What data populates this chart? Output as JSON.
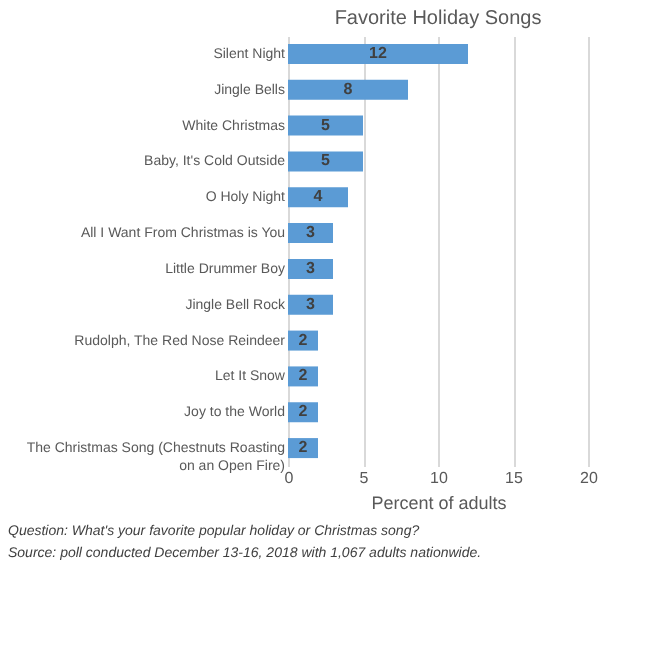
{
  "chart_data": {
    "type": "bar",
    "orientation": "horizontal",
    "title": "Favorite Holiday Songs",
    "xlabel": "Percent of adults",
    "categories": [
      "Silent Night",
      "Jingle Bells",
      "White Christmas",
      "Baby, It's Cold Outside",
      "O Holy Night",
      "All I Want From Christmas is You",
      "Little Drummer Boy",
      "Jingle Bell Rock",
      "Rudolph, The Red Nose Reindeer",
      "Let It Snow",
      "Joy to the World",
      "The Christmas Song (Chestnuts Roasting on an Open Fire)"
    ],
    "values": [
      12,
      8,
      5,
      5,
      4,
      3,
      3,
      3,
      2,
      2,
      2,
      2
    ],
    "color": "#5b9bd5",
    "xlim": [
      0,
      20
    ],
    "xticks": [
      0,
      5,
      10,
      15,
      20
    ],
    "grid": "x",
    "data_labels": true,
    "annotations": [
      "Question: What's your favorite popular holiday or Christmas song?",
      "Source: poll conducted December 13-16, 2018 with 1,067 adults nationwide."
    ]
  }
}
